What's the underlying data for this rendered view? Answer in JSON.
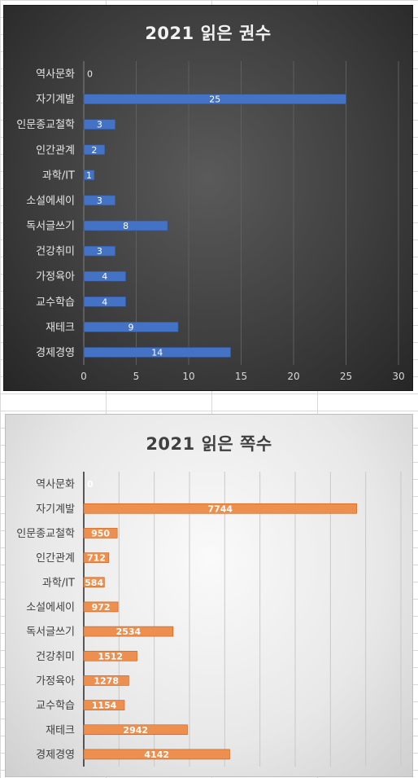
{
  "chart_data": [
    {
      "type": "bar",
      "orientation": "horizontal",
      "title": "2021 읽은 권수",
      "categories": [
        "역사문화",
        "자기계발",
        "인문종교철학",
        "인간관계",
        "과학/IT",
        "소설에세이",
        "독서글쓰기",
        "건강취미",
        "가정육아",
        "교수학습",
        "재테크",
        "경제경영"
      ],
      "values": [
        0,
        25,
        3,
        2,
        1,
        3,
        8,
        3,
        4,
        4,
        9,
        14
      ],
      "xlim": [
        0,
        30
      ],
      "xticks": [
        0,
        5,
        10,
        15,
        20,
        25,
        30
      ],
      "grid": true,
      "data_labels": true,
      "bar_color": "#4472c4",
      "background": "#404040"
    },
    {
      "type": "bar",
      "orientation": "horizontal",
      "title": "2021 읽은 쪽수",
      "categories": [
        "역사문화",
        "자기계발",
        "인문종교철학",
        "인간관계",
        "과학/IT",
        "소설에세이",
        "독서글쓰기",
        "건강취미",
        "가정육아",
        "교수학습",
        "재테크",
        "경제경영"
      ],
      "values": [
        0,
        7744,
        950,
        712,
        584,
        972,
        2534,
        1512,
        1278,
        1154,
        2942,
        4142
      ],
      "xlim": [
        0,
        9000
      ],
      "grid": true,
      "data_labels": true,
      "bar_color": "#ed8f4e",
      "background": "#ececec"
    }
  ]
}
